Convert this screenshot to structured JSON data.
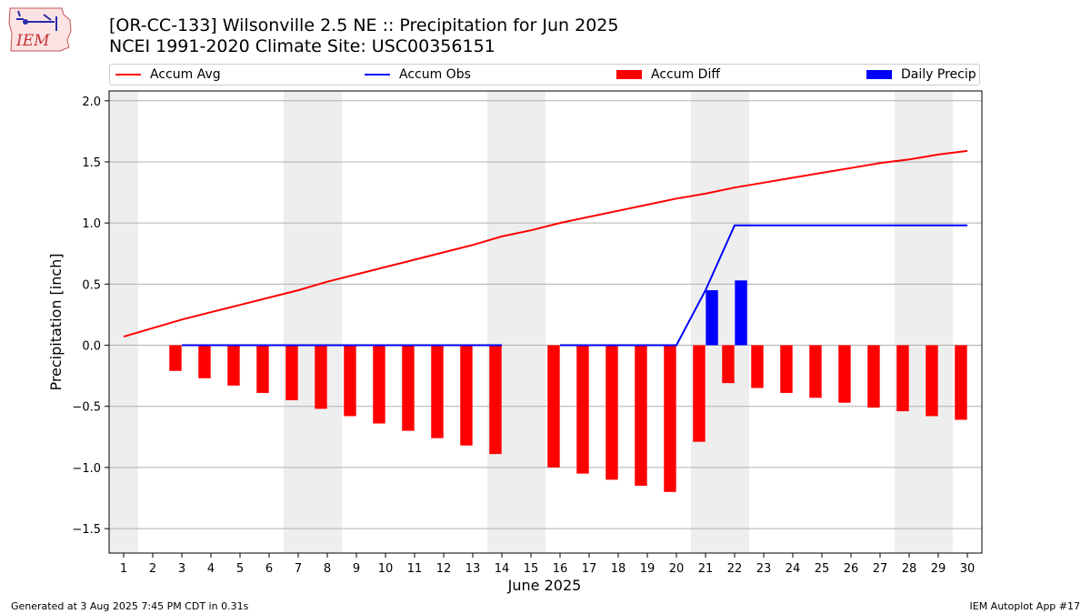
{
  "header": {
    "logo_text": "IEM",
    "title_line1": "[OR-CC-133] Wilsonville 2.5 NE :: Precipitation for Jun 2025",
    "title_line2": "NCEI 1991-2020 Climate Site: USC00356151"
  },
  "footer": {
    "left": "Generated at 3 Aug 2025 7:45 PM CDT in 0.31s",
    "right": "IEM Autoplot App #17"
  },
  "colors": {
    "avg": "#ff0000",
    "obs": "#0000ff",
    "diff": "#ff0000",
    "daily": "#0000ff",
    "weekend": "#eeeeee",
    "grid": "#b0b0b0"
  },
  "chart_data": {
    "type": "bar",
    "xlabel": "June 2025",
    "ylabel": "Precipitation [inch]",
    "xlim": [
      0.5,
      30.5
    ],
    "ylim": [
      -1.7,
      2.08
    ],
    "yticks": [
      -1.5,
      -1.0,
      -0.5,
      0.0,
      0.5,
      1.0,
      1.5,
      2.0
    ],
    "ytick_labels": [
      "−1.5",
      "−1.0",
      "−0.5",
      "0.0",
      "0.5",
      "1.0",
      "1.5",
      "2.0"
    ],
    "days": [
      1,
      2,
      3,
      4,
      5,
      6,
      7,
      8,
      9,
      10,
      11,
      12,
      13,
      14,
      15,
      16,
      17,
      18,
      19,
      20,
      21,
      22,
      23,
      24,
      25,
      26,
      27,
      28,
      29,
      30
    ],
    "weekend_days": [
      1,
      7,
      8,
      14,
      15,
      21,
      22,
      28,
      29
    ],
    "grid": "y",
    "legend_placement": "top",
    "series": [
      {
        "name": "Accum Avg",
        "kind": "line",
        "x": [
          1,
          2,
          3,
          4,
          5,
          6,
          7,
          8,
          9,
          10,
          11,
          12,
          13,
          14,
          15,
          16,
          17,
          18,
          19,
          20,
          21,
          22,
          23,
          24,
          25,
          26,
          27,
          28,
          29,
          30
        ],
        "values": [
          0.07,
          0.14,
          0.21,
          0.27,
          0.33,
          0.39,
          0.45,
          0.52,
          0.58,
          0.64,
          0.7,
          0.76,
          0.82,
          0.89,
          0.94,
          1.0,
          1.05,
          1.1,
          1.15,
          1.2,
          1.24,
          1.29,
          1.33,
          1.37,
          1.41,
          1.45,
          1.49,
          1.52,
          1.56,
          1.59
        ]
      },
      {
        "name": "Accum Obs",
        "kind": "line",
        "segments": [
          {
            "x": [
              3,
              4,
              5,
              6,
              7,
              8,
              9,
              10,
              11,
              12,
              13,
              14
            ],
            "values": [
              0,
              0,
              0,
              0,
              0,
              0,
              0,
              0,
              0,
              0,
              0,
              0
            ]
          },
          {
            "x": [
              16,
              17,
              18,
              19,
              20,
              21,
              22,
              23,
              24,
              25,
              26,
              27,
              28,
              29,
              30
            ],
            "values": [
              0,
              0,
              0,
              0,
              0,
              0.45,
              0.98,
              0.98,
              0.98,
              0.98,
              0.98,
              0.98,
              0.98,
              0.98,
              0.98
            ]
          }
        ]
      },
      {
        "name": "Accum Diff",
        "kind": "bar",
        "offset": -0.22,
        "x": [
          3,
          4,
          5,
          6,
          7,
          8,
          9,
          10,
          11,
          12,
          13,
          14,
          16,
          17,
          18,
          19,
          20,
          21,
          22,
          23,
          24,
          25,
          26,
          27,
          28,
          29,
          30
        ],
        "values": [
          -0.21,
          -0.27,
          -0.33,
          -0.39,
          -0.45,
          -0.52,
          -0.58,
          -0.64,
          -0.7,
          -0.76,
          -0.82,
          -0.89,
          -1.0,
          -1.05,
          -1.1,
          -1.15,
          -1.2,
          -0.79,
          -0.31,
          -0.35,
          -0.39,
          -0.43,
          -0.47,
          -0.51,
          -0.54,
          -0.58,
          -0.61
        ]
      },
      {
        "name": "Daily Precip",
        "kind": "bar",
        "offset": 0.22,
        "x": [
          21,
          22
        ],
        "values": [
          0.45,
          0.53
        ]
      }
    ]
  }
}
